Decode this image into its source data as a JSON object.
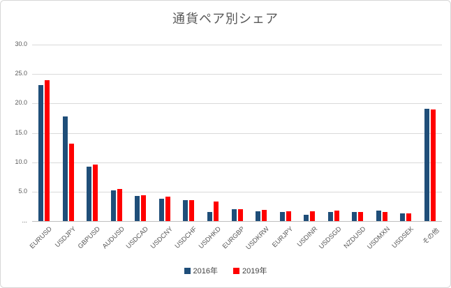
{
  "title": "通貨ペア別シェア",
  "chart_data": {
    "type": "bar",
    "title": "通貨ペア別シェア",
    "categories": [
      "EURUSD",
      "USDJPY",
      "GBPUSD",
      "AUDUSD",
      "USDCAD",
      "USDCNY",
      "USDCHF",
      "USDHKD",
      "EURGBP",
      "USDKRW",
      "EURJPY",
      "USDINR",
      "USDSGD",
      "NZDUSD",
      "USDMXN",
      "USDSEK",
      "その他"
    ],
    "series": [
      {
        "name": "2016年",
        "color": "#1F4E79",
        "values": [
          23.1,
          17.8,
          9.3,
          5.2,
          4.3,
          3.8,
          3.6,
          1.5,
          2.0,
          1.7,
          1.6,
          1.1,
          1.6,
          1.5,
          1.8,
          1.3,
          19.1
        ]
      },
      {
        "name": "2019年",
        "color": "#FF0000",
        "values": [
          24.0,
          13.2,
          9.6,
          5.4,
          4.4,
          4.1,
          3.5,
          3.3,
          2.0,
          1.9,
          1.7,
          1.7,
          1.8,
          1.6,
          1.5,
          1.3,
          19.0
        ]
      }
    ],
    "ylim": [
      0,
      30
    ],
    "yticks": [
      {
        "value": 30,
        "label": "30.0"
      },
      {
        "value": 25,
        "label": "25.0"
      },
      {
        "value": 20,
        "label": "20.0"
      },
      {
        "value": 15,
        "label": "15.0"
      },
      {
        "value": 10,
        "label": "10.0"
      },
      {
        "value": 5,
        "label": "5.0"
      },
      {
        "value": 0,
        "label": "..."
      }
    ],
    "grid": "horizontal",
    "legend_position": "bottom-center",
    "xlabel": "",
    "ylabel": ""
  },
  "colors": {
    "grid": "#d9d9d9",
    "axis": "#bfbfbf",
    "text": "#595959"
  }
}
